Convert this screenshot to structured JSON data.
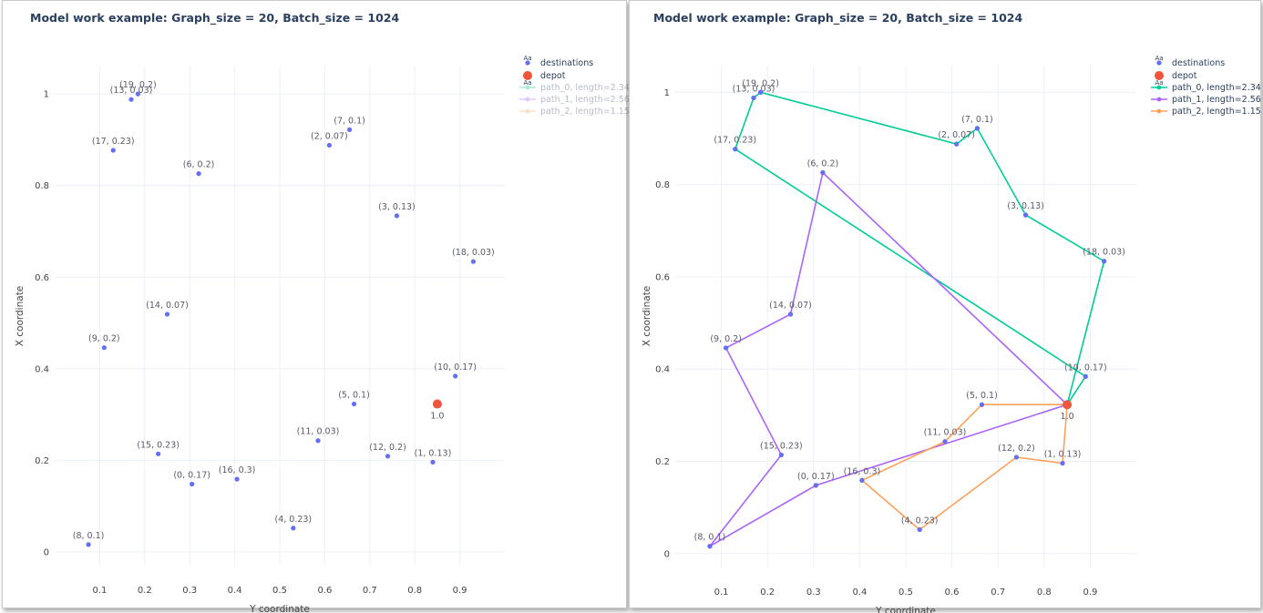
{
  "colors": {
    "destinations": "#636efa",
    "depot": "#ef553b",
    "path_0": "#00cc96",
    "path_1": "#ab63fa",
    "path_2": "#ffa15a",
    "grid": "#ebf0f8",
    "title": "#2a3f5f"
  },
  "legend_aa": "Aa",
  "chart_data": [
    {
      "type": "scatter",
      "title": "Model work example: Graph_size = 20, Batch_size = 1024",
      "xlabel": "Y coordinate",
      "ylabel": "X coordinate",
      "xlim": [
        0,
        1.0
      ],
      "ylim": [
        -0.03,
        1.06
      ],
      "xticks": [
        "0.1",
        "0.2",
        "0.3",
        "0.4",
        "0.5",
        "0.6",
        "0.7",
        "0.8",
        "0.9"
      ],
      "yticks": [
        "0",
        "0.2",
        "0.4",
        "0.6",
        "0.8",
        "1"
      ],
      "grid": true,
      "legend_position": "right",
      "series": [
        {
          "name": "destinations",
          "mode": "markers",
          "points": [
            {
              "x": 0.305,
              "y": 0.148,
              "label": "(0, 0.17)"
            },
            {
              "x": 0.84,
              "y": 0.196,
              "label": "(1, 0.13)"
            },
            {
              "x": 0.61,
              "y": 0.888,
              "label": "(2, 0.07)"
            },
            {
              "x": 0.76,
              "y": 0.734,
              "label": "(3, 0.13)"
            },
            {
              "x": 0.53,
              "y": 0.052,
              "label": "(4, 0.23)"
            },
            {
              "x": 0.665,
              "y": 0.323,
              "label": "(5, 0.1)"
            },
            {
              "x": 0.32,
              "y": 0.826,
              "label": "(6, 0.2)"
            },
            {
              "x": 0.655,
              "y": 0.922,
              "label": "(7, 0.1)"
            },
            {
              "x": 0.075,
              "y": 0.016,
              "label": "(8, 0.1)"
            },
            {
              "x": 0.11,
              "y": 0.446,
              "label": "(9, 0.2)"
            },
            {
              "x": 0.89,
              "y": 0.384,
              "label": "(10, 0.17)"
            },
            {
              "x": 0.585,
              "y": 0.243,
              "label": "(11, 0.03)"
            },
            {
              "x": 0.74,
              "y": 0.209,
              "label": "(12, 0.2)"
            },
            {
              "x": 0.17,
              "y": 0.988,
              "label": "(13, 0.03)"
            },
            {
              "x": 0.25,
              "y": 0.519,
              "label": "(14, 0.07)"
            },
            {
              "x": 0.23,
              "y": 0.214,
              "label": "(15, 0.23)"
            },
            {
              "x": 0.405,
              "y": 0.159,
              "label": "(16, 0.3)"
            },
            {
              "x": 0.13,
              "y": 0.877,
              "label": "(17, 0.23)"
            },
            {
              "x": 0.93,
              "y": 0.634,
              "label": "(18, 0.03)"
            },
            {
              "x": 0.185,
              "y": 1.0,
              "label": "(19, 0.2)"
            }
          ]
        },
        {
          "name": "depot",
          "mode": "markers",
          "points": [
            {
              "x": 0.85,
              "y": 0.323,
              "label": "1.0"
            }
          ]
        },
        {
          "name": "path_0, length=2.34",
          "mode": "lines+markers",
          "hidden": true,
          "order": []
        },
        {
          "name": "path_1, length=2.56",
          "mode": "lines+markers",
          "hidden": true,
          "order": []
        },
        {
          "name": "path_2, length=1.15",
          "mode": "lines+markers",
          "hidden": true,
          "order": []
        }
      ]
    },
    {
      "type": "scatter",
      "title": "Model work example: Graph_size = 20, Batch_size = 1024",
      "xlabel": "Y coordinate",
      "ylabel": "X coordinate",
      "xlim": [
        0,
        1.0
      ],
      "ylim": [
        -0.03,
        1.06
      ],
      "xticks": [
        "0.1",
        "0.2",
        "0.3",
        "0.4",
        "0.5",
        "0.6",
        "0.7",
        "0.8",
        "0.9"
      ],
      "yticks": [
        "0",
        "0.2",
        "0.4",
        "0.6",
        "0.8",
        "1"
      ],
      "grid": true,
      "legend_position": "right",
      "series": [
        {
          "name": "destinations",
          "mode": "markers",
          "points": [
            {
              "x": 0.305,
              "y": 0.148,
              "label": "(0, 0.17)"
            },
            {
              "x": 0.84,
              "y": 0.196,
              "label": "(1, 0.13)"
            },
            {
              "x": 0.61,
              "y": 0.888,
              "label": "(2, 0.07)"
            },
            {
              "x": 0.76,
              "y": 0.734,
              "label": "(3, 0.13)"
            },
            {
              "x": 0.53,
              "y": 0.052,
              "label": "(4, 0.23)"
            },
            {
              "x": 0.665,
              "y": 0.323,
              "label": "(5, 0.1)"
            },
            {
              "x": 0.32,
              "y": 0.826,
              "label": "(6, 0.2)"
            },
            {
              "x": 0.655,
              "y": 0.922,
              "label": "(7, 0.1)"
            },
            {
              "x": 0.075,
              "y": 0.016,
              "label": "(8, 0.1)"
            },
            {
              "x": 0.11,
              "y": 0.446,
              "label": "(9, 0.2)"
            },
            {
              "x": 0.89,
              "y": 0.384,
              "label": "(10, 0.17)"
            },
            {
              "x": 0.585,
              "y": 0.243,
              "label": "(11, 0.03)"
            },
            {
              "x": 0.74,
              "y": 0.209,
              "label": "(12, 0.2)"
            },
            {
              "x": 0.17,
              "y": 0.988,
              "label": "(13, 0.03)"
            },
            {
              "x": 0.25,
              "y": 0.519,
              "label": "(14, 0.07)"
            },
            {
              "x": 0.23,
              "y": 0.214,
              "label": "(15, 0.23)"
            },
            {
              "x": 0.405,
              "y": 0.159,
              "label": "(16, 0.3)"
            },
            {
              "x": 0.13,
              "y": 0.877,
              "label": "(17, 0.23)"
            },
            {
              "x": 0.93,
              "y": 0.634,
              "label": "(18, 0.03)"
            },
            {
              "x": 0.185,
              "y": 1.0,
              "label": "(19, 0.2)"
            }
          ]
        },
        {
          "name": "depot",
          "mode": "markers",
          "points": [
            {
              "x": 0.85,
              "y": 0.323,
              "label": "1.0"
            }
          ]
        },
        {
          "name": "path_0, length=2.34",
          "mode": "lines+markers",
          "hidden": false,
          "order": [
            "depot",
            10,
            17,
            13,
            19,
            2,
            7,
            3,
            18,
            "depot"
          ]
        },
        {
          "name": "path_1, length=2.56",
          "mode": "lines+markers",
          "hidden": false,
          "order": [
            "depot",
            6,
            14,
            9,
            15,
            8,
            0,
            "depot"
          ]
        },
        {
          "name": "path_2, length=1.15",
          "mode": "lines+markers",
          "hidden": false,
          "order": [
            "depot",
            5,
            11,
            16,
            4,
            12,
            1,
            "depot"
          ]
        }
      ]
    }
  ]
}
